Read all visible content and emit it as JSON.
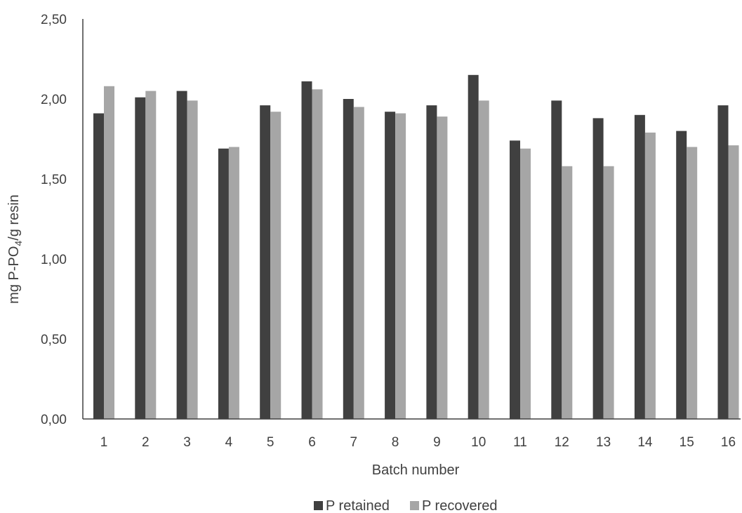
{
  "chart_data": {
    "type": "bar",
    "title": "",
    "xlabel": "Batch number",
    "ylabel_main": "mg P-PO",
    "ylabel_sub": "4",
    "ylabel_tail": "/g resin",
    "ylim": [
      0,
      2.5
    ],
    "yticks": [
      "0,00",
      "0,50",
      "1,00",
      "1,50",
      "2,00",
      "2,50"
    ],
    "ytick_values": [
      0,
      0.5,
      1.0,
      1.5,
      2.0,
      2.5
    ],
    "categories": [
      "1",
      "2",
      "3",
      "4",
      "5",
      "6",
      "7",
      "8",
      "9",
      "10",
      "11",
      "12",
      "13",
      "14",
      "15",
      "16"
    ],
    "series": [
      {
        "name": "P retained",
        "color": "#404040",
        "values": [
          1.91,
          2.01,
          2.05,
          1.69,
          1.96,
          2.11,
          2.0,
          1.92,
          1.96,
          2.15,
          1.74,
          1.99,
          1.88,
          1.9,
          1.8,
          1.96
        ]
      },
      {
        "name": "P recovered",
        "color": "#a6a6a6",
        "values": [
          2.08,
          2.05,
          1.99,
          1.7,
          1.92,
          2.06,
          1.95,
          1.91,
          1.89,
          1.99,
          1.69,
          1.58,
          1.58,
          1.79,
          1.7,
          1.71
        ]
      }
    ],
    "grid": false,
    "legend_position": "bottom"
  }
}
